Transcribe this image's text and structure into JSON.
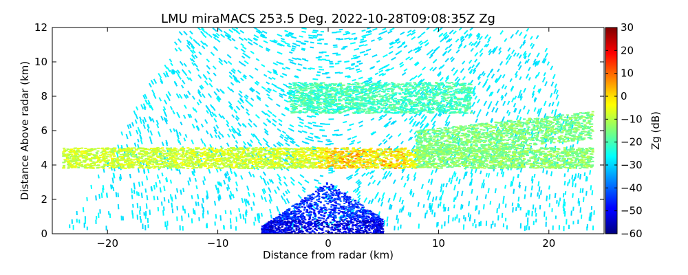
{
  "chart_data": {
    "type": "heatmap",
    "title": "LMU miraMACS 253.5 Deg. 2022-10-28T09:08:35Z  Zg",
    "xlabel": "Distance from radar (km)",
    "ylabel": "Distance Above radar  (km)",
    "xlim": [
      -25,
      25
    ],
    "ylim": [
      0,
      12
    ],
    "x_ticks": [
      -20,
      -10,
      0,
      10,
      20
    ],
    "x_tick_labels": [
      "−20",
      "−10",
      "0",
      "10",
      "20"
    ],
    "y_ticks": [
      0,
      2,
      4,
      6,
      8,
      10,
      12
    ],
    "y_tick_labels": [
      "0",
      "2",
      "4",
      "6",
      "8",
      "10",
      "12"
    ],
    "grid": false,
    "colorbar": {
      "label": "Zg (dB)",
      "range": [
        -60,
        30
      ],
      "ticks": [
        -60,
        -50,
        -40,
        -30,
        -20,
        -10,
        0,
        10,
        20,
        30
      ],
      "tick_labels": [
        "−60",
        "−50",
        "−40",
        "−30",
        "−20",
        "−10",
        "0",
        "10",
        "20",
        "30"
      ],
      "colormap": "jet"
    },
    "features": [
      {
        "name": "upper cloud layer",
        "x_range": [
          -3.5,
          13
        ],
        "z_range": [
          7.0,
          8.8
        ],
        "zg_db": -20
      },
      {
        "name": "melting layer band",
        "x_range": [
          -24,
          24
        ],
        "z_range": [
          3.8,
          5.0
        ],
        "zg_db": -8,
        "zg_max_db": 8
      },
      {
        "name": "right sloping layer",
        "x_range": [
          8,
          24
        ],
        "z_range": [
          5.0,
          6.8
        ],
        "zg_db": -15
      },
      {
        "name": "low-level clutter",
        "x_range": [
          -6,
          5
        ],
        "z_range": [
          0,
          3
        ],
        "zg_db": -45
      },
      {
        "name": "sparse noise sector",
        "x_range": [
          -23,
          22
        ],
        "z_range": [
          0,
          12
        ],
        "zg_db": -28
      }
    ]
  }
}
